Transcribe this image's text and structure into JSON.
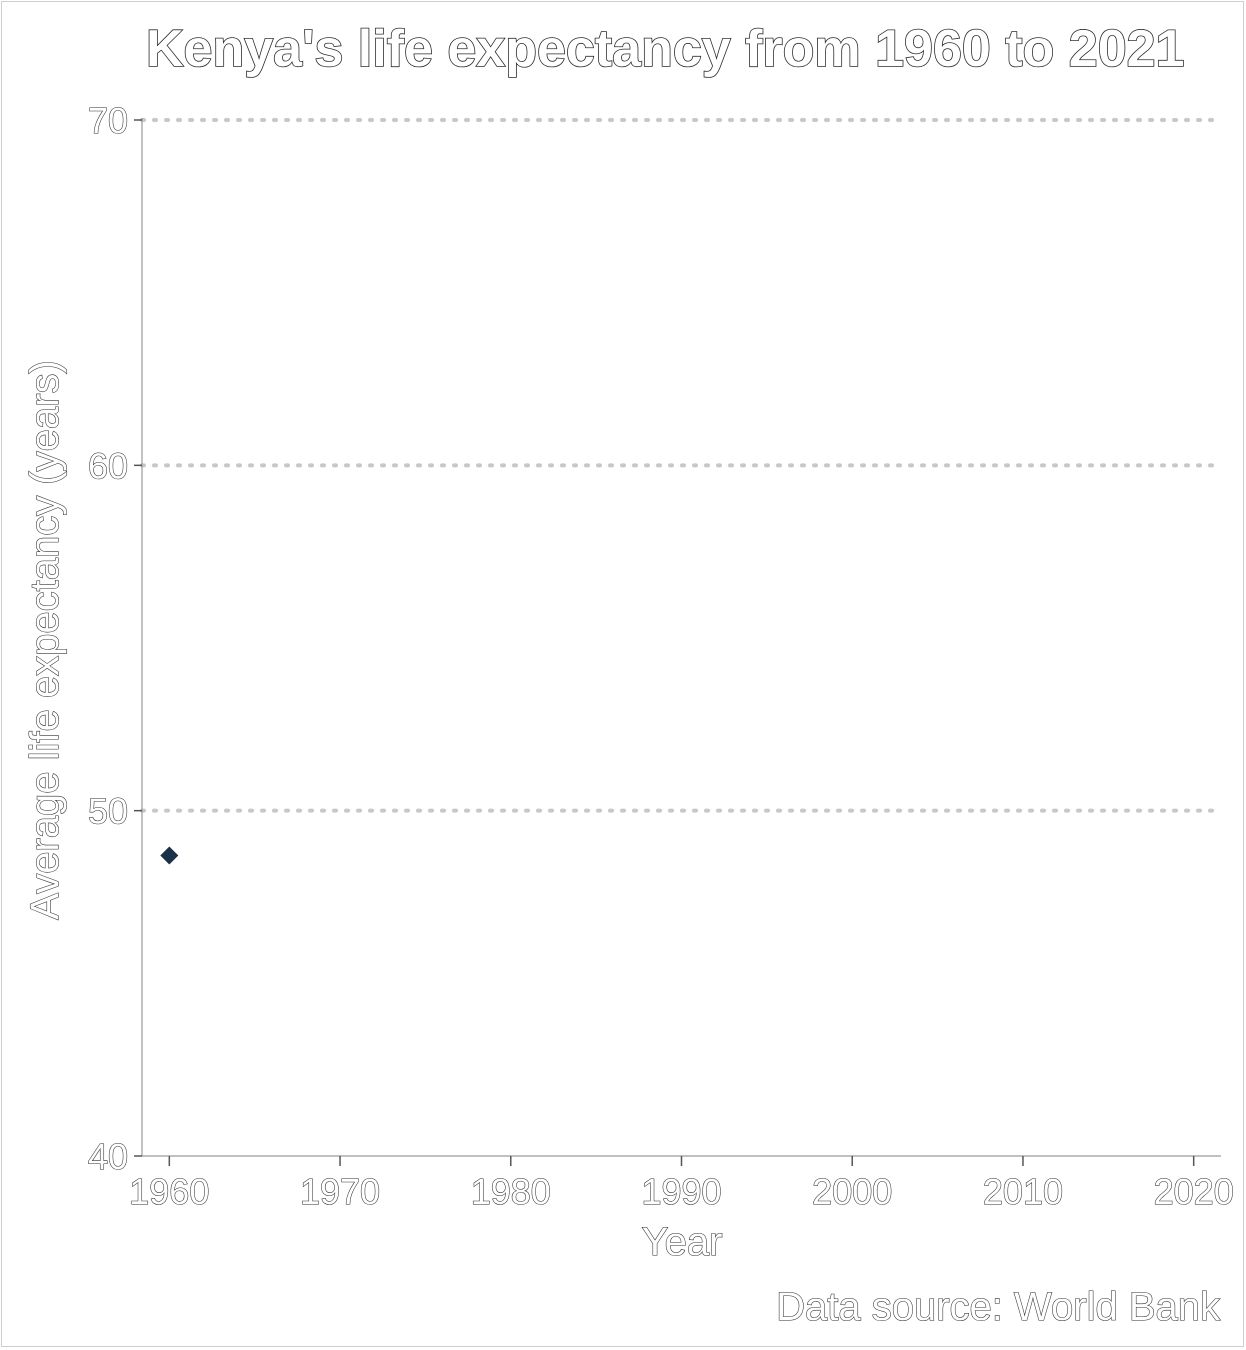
{
  "chart_data": {
    "type": "scatter",
    "title": "Kenya's life expectancy from 1960 to 2021",
    "xlabel": "Year",
    "ylabel": "Average life expectancy (years)",
    "caption": "Data source: World Bank",
    "xlim": [
      1958.4,
      2021.6
    ],
    "ylim": [
      40,
      70
    ],
    "x_ticks": [
      "1960",
      "1970",
      "1980",
      "1990",
      "2000",
      "2010",
      "2020"
    ],
    "y_ticks": [
      "40",
      "50",
      "60",
      "70"
    ],
    "gridlines": "horizontal, dotted",
    "marker": "diamond",
    "marker_color": "#1b3049",
    "points": [
      {
        "x": 1960,
        "y": 48.7
      }
    ]
  }
}
